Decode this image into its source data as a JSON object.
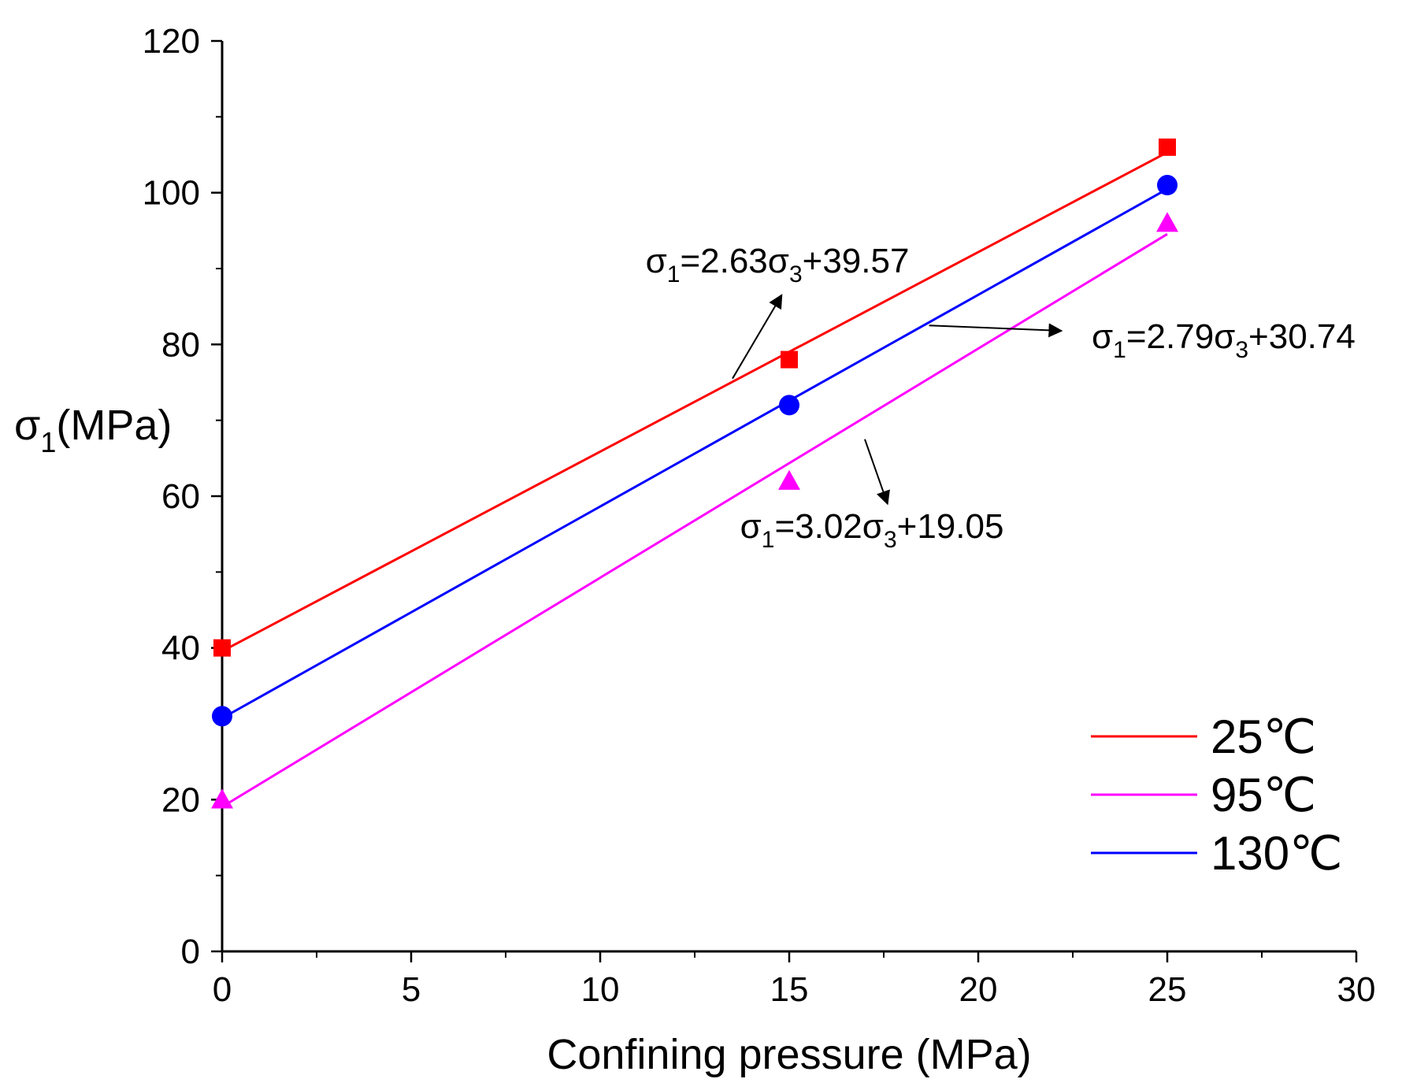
{
  "chart_data": {
    "type": "scatter",
    "title": "",
    "xlabel": "Confining pressure (MPa)",
    "ylabel": {
      "prefix": "σ",
      "sub": "1",
      "suffix": "(MPa)"
    },
    "xlim": [
      0,
      30
    ],
    "ylim": [
      0,
      120
    ],
    "xticks": [
      0,
      5,
      10,
      15,
      20,
      25,
      30
    ],
    "yticks": [
      0,
      20,
      40,
      60,
      80,
      100,
      120
    ],
    "grid": false,
    "legend_position": "bottom-right",
    "series": [
      {
        "name": "25℃",
        "color": "#ff0000",
        "marker": "square",
        "x": [
          0,
          15,
          25
        ],
        "y": [
          40,
          78,
          106
        ],
        "fit": {
          "slope": 2.63,
          "intercept": 39.57
        }
      },
      {
        "name": "95℃",
        "color": "#ff00ff",
        "marker": "triangle",
        "x": [
          0,
          15,
          25
        ],
        "y": [
          20,
          62,
          96
        ],
        "fit": {
          "slope": 3.02,
          "intercept": 19.05
        }
      },
      {
        "name": "130℃",
        "color": "#0000ff",
        "marker": "circle",
        "x": [
          0,
          15,
          25
        ],
        "y": [
          31,
          72,
          101
        ],
        "fit": {
          "slope": 2.79,
          "intercept": 30.74
        }
      }
    ],
    "annotations": [
      {
        "series": "25℃",
        "parts": [
          "σ",
          "1",
          "=2.63σ",
          "3",
          "+39.57"
        ],
        "arrow_from": [
          13.5,
          75.5
        ],
        "arrow_to": [
          14.8,
          86.5
        ],
        "text_anchor": [
          11.2,
          89.5
        ]
      },
      {
        "series": "130℃",
        "parts": [
          "σ",
          "1",
          "=2.79σ",
          "3",
          "+30.74"
        ],
        "arrow_from": [
          18.7,
          82.5
        ],
        "arrow_to": [
          22.2,
          81.8
        ],
        "text_anchor": [
          23.0,
          79.5
        ]
      },
      {
        "series": "95℃",
        "parts": [
          "σ",
          "1",
          "=3.02σ",
          "3",
          "+19.05"
        ],
        "arrow_from": [
          17.0,
          67.5
        ],
        "arrow_to": [
          17.6,
          59.0
        ],
        "text_anchor": [
          13.7,
          54.5
        ]
      }
    ]
  }
}
